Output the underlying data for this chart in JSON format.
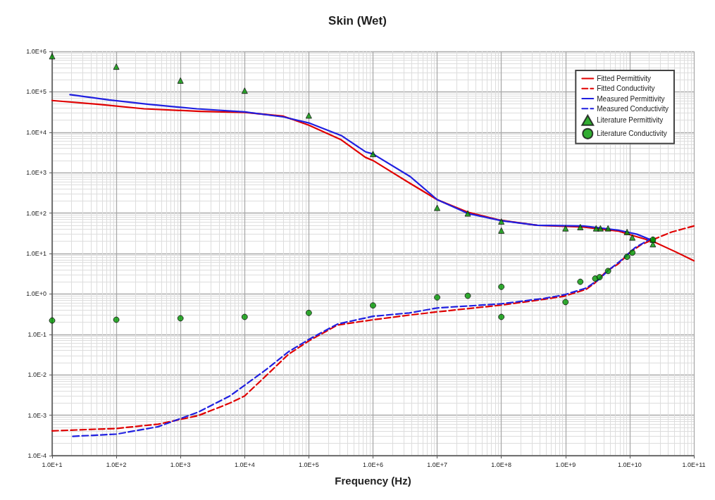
{
  "chart_data": {
    "type": "line",
    "title": "Skin (Wet)",
    "xlabel": "Frequency (Hz)",
    "log": "xy",
    "grid": true,
    "legend": "top right",
    "xlim": [
      10,
      100000000000
    ],
    "ylim": [
      0.0001,
      1000000
    ],
    "xticks": [
      {
        "value": 10,
        "label": "1.0E+1"
      },
      {
        "value": 100,
        "label": "1.0E+2"
      },
      {
        "value": 1000,
        "label": "1.0E+3"
      },
      {
        "value": 10000,
        "label": "1.0E+4"
      },
      {
        "value": 100000,
        "label": "1.0E+5"
      },
      {
        "value": 1000000,
        "label": "1.0E+6"
      },
      {
        "value": 10000000,
        "label": "1.0E+7"
      },
      {
        "value": 100000000,
        "label": "1.0E+8"
      },
      {
        "value": 1000000000,
        "label": "1.0E+9"
      },
      {
        "value": 10000000000,
        "label": "1.0E+10"
      },
      {
        "value": 100000000000,
        "label": "1.0E+11"
      }
    ],
    "yticks": [
      {
        "value": 0.0001,
        "label": "1.0E-4"
      },
      {
        "value": 0.001,
        "label": "1.0E-3"
      },
      {
        "value": 0.01,
        "label": "1.0E-2"
      },
      {
        "value": 0.1,
        "label": "1.0E-1"
      },
      {
        "value": 1,
        "label": "1.0E+0"
      },
      {
        "value": 10,
        "label": "1.0E+1"
      },
      {
        "value": 100,
        "label": "1.0E+2"
      },
      {
        "value": 1000,
        "label": "1.0E+3"
      },
      {
        "value": 10000,
        "label": "1.0E+4"
      },
      {
        "value": 100000,
        "label": "1.0E+5"
      },
      {
        "value": 1000000,
        "label": "1.0E+6"
      }
    ],
    "series": [
      {
        "name": "Fitted Permittivity",
        "type": "line",
        "line_style": "solid",
        "marker": "none",
        "color": "#e00000",
        "x": [
          10,
          53,
          270,
          2000,
          10000,
          40000,
          100000,
          320000,
          760000,
          1000000,
          3800000,
          10000000,
          30000000,
          100000000,
          360000000,
          1900000000,
          6600000000,
          13000000000,
          23000000000,
          52000000000,
          100000000000
        ],
        "values": [
          61000,
          49000,
          38000,
          33000,
          31000,
          25000,
          15000,
          6500,
          2400,
          2000,
          540,
          215,
          105,
          66,
          50,
          45,
          36,
          26,
          20,
          11,
          6.6
        ]
      },
      {
        "name": "Fitted Conductivity",
        "type": "line",
        "line_style": "dashed",
        "marker": "none",
        "color": "#e00000",
        "x": [
          10,
          100,
          450,
          1900,
          5900,
          10000,
          21000,
          48000,
          100000,
          280000,
          1000000,
          3700000,
          10000000,
          100000000,
          470000000,
          950000000,
          2100000000,
          2900000000,
          4400000000,
          6600000000,
          10000000000,
          15000000000,
          23000000000,
          45000000000,
          100000000000
        ],
        "values": [
          0.00041,
          0.00047,
          0.0006,
          0.00098,
          0.002,
          0.003,
          0.0091,
          0.032,
          0.069,
          0.17,
          0.23,
          0.3,
          0.36,
          0.53,
          0.74,
          0.88,
          1.3,
          1.9,
          3.7,
          5.5,
          10.5,
          16.5,
          22,
          34,
          48
        ]
      },
      {
        "name": "Measured Permittivity",
        "type": "line",
        "line_style": "solid",
        "marker": "none",
        "color": "#2020e0",
        "x": [
          19,
          77,
          320,
          1800,
          10000,
          40000,
          100000,
          320000,
          760000,
          1000000,
          3800000,
          10000000,
          30000000,
          100000000,
          360000000,
          1900000000,
          6600000000,
          13000000000,
          21000000000
        ],
        "values": [
          85000,
          63000,
          49000,
          38000,
          32000,
          24000,
          17000,
          8300,
          3300,
          2900,
          800,
          215,
          98,
          65,
          50,
          48,
          38,
          30,
          22
        ]
      },
      {
        "name": "Measured Conductivity",
        "type": "line",
        "line_style": "dashed",
        "marker": "none",
        "color": "#2020e0",
        "x": [
          21,
          100,
          450,
          1900,
          5900,
          10000,
          21000,
          48000,
          100000,
          280000,
          1000000,
          3700000,
          10000000,
          100000000,
          470000000,
          950000000,
          2100000000,
          3200000000,
          4800000000,
          7200000000,
          12000000000,
          21000000000
        ],
        "values": [
          0.0003,
          0.00034,
          0.00052,
          0.0012,
          0.003,
          0.0055,
          0.013,
          0.037,
          0.075,
          0.18,
          0.28,
          0.34,
          0.45,
          0.57,
          0.78,
          0.95,
          1.4,
          2.2,
          4,
          6.6,
          13.8,
          23
        ]
      },
      {
        "name": "Literature Permittivity",
        "type": "scatter",
        "marker": "triangle",
        "color": "#009900",
        "x": [
          10,
          100,
          1000,
          10000,
          100000,
          1000000,
          10000000,
          30000000,
          100000000,
          100000000,
          1000000000,
          1700000000,
          3000000000,
          3500000000,
          4600000000,
          9100000000,
          11000000000,
          23000000000,
          23000000000
        ],
        "values": [
          760000,
          420000,
          190000,
          107000,
          26000,
          2900,
          135,
          98,
          62,
          37,
          42,
          45,
          42,
          42,
          42,
          34,
          25,
          22,
          17
        ]
      },
      {
        "name": "Literature Conductivity",
        "type": "scatter",
        "marker": "circle",
        "color": "#009900",
        "x": [
          10,
          100,
          1000,
          10000,
          100000,
          1000000,
          10000000,
          30000000,
          100000000,
          100000000,
          1000000000,
          1700000000,
          2900000000,
          3400000000,
          4600000000,
          9100000000,
          11000000000,
          23000000000
        ],
        "values": [
          0.22,
          0.23,
          0.25,
          0.27,
          0.34,
          0.52,
          0.82,
          0.9,
          1.5,
          0.27,
          0.63,
          2,
          2.4,
          2.6,
          3.7,
          8.3,
          10.5,
          22
        ]
      }
    ]
  }
}
